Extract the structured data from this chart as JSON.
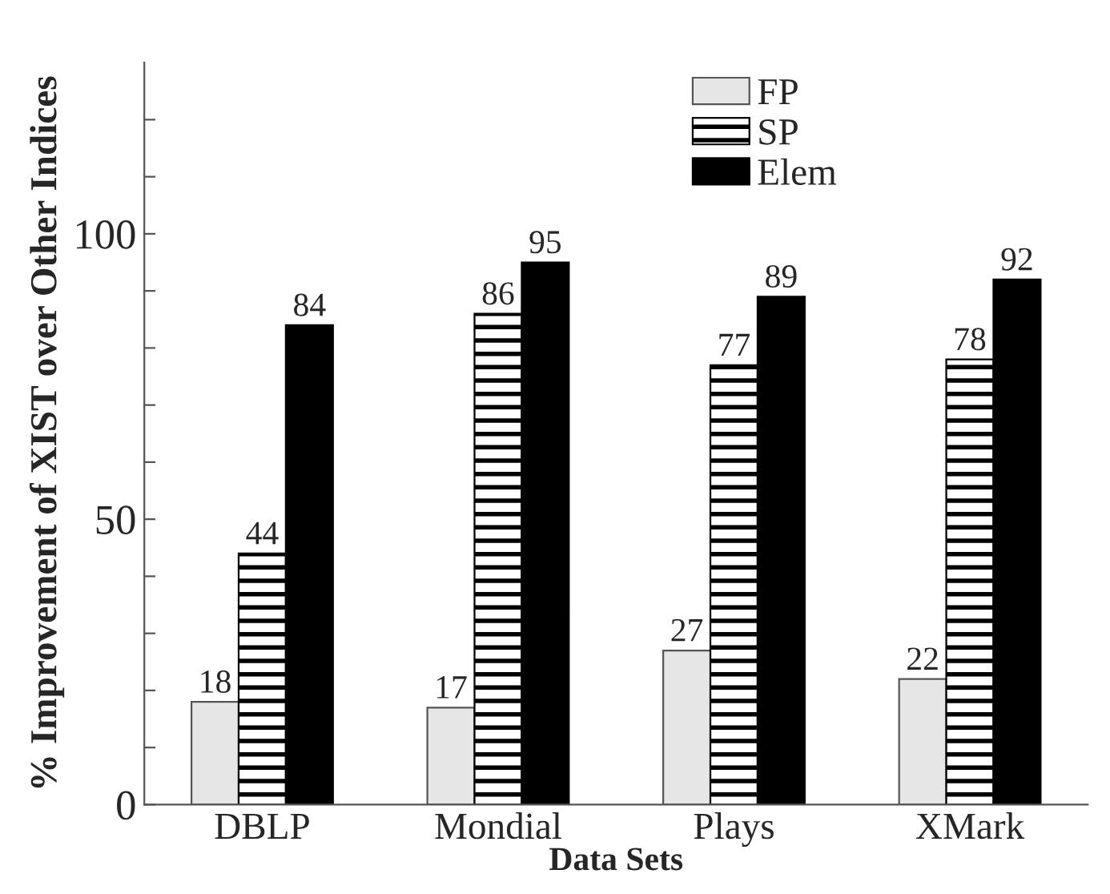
{
  "chart_data": {
    "type": "bar",
    "xlabel": "Data Sets",
    "ylabel": "% Improvement of XIST over Other Indices",
    "categories": [
      "DBLP",
      "Mondial",
      "Plays",
      "XMark"
    ],
    "series": [
      {
        "name": "FP",
        "color": "#e6e6e6",
        "values": [
          18,
          17,
          27,
          22
        ]
      },
      {
        "name": "SP",
        "color": "#000000",
        "values": [
          44,
          86,
          77,
          78
        ]
      },
      {
        "name": "Elem",
        "color": "#000000",
        "values": [
          84,
          95,
          89,
          92
        ]
      }
    ],
    "ylim": [
      0,
      130
    ],
    "yticks": [
      0,
      {
        "value": 10,
        "label": null
      },
      {
        "value": 20,
        "label": null
      },
      {
        "value": 30,
        "label": null
      },
      {
        "value": 40,
        "label": null
      },
      50,
      {
        "value": 60,
        "label": null
      },
      {
        "value": 70,
        "label": null
      },
      {
        "value": 80,
        "label": null
      },
      {
        "value": 90,
        "label": null
      },
      100,
      {
        "value": 110,
        "label": null
      },
      {
        "value": 120,
        "label": null
      }
    ],
    "data_labels": true,
    "legend": "top right",
    "grid": false
  }
}
